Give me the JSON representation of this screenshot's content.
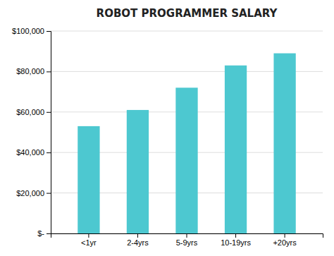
{
  "chart_data": {
    "type": "bar",
    "title": "ROBOT PROGRAMMER SALARY",
    "categories": [
      "<1yr",
      "2-4yrs",
      "5-9yrs",
      "10-19yrs",
      "+20yrs"
    ],
    "values": [
      53000,
      61000,
      72000,
      83000,
      89000
    ],
    "color": "#4DC8D0",
    "ylim": [
      0,
      100000
    ],
    "yticks": [
      {
        "value": 0,
        "label": "$-"
      },
      {
        "value": 20000,
        "label": "$20,000"
      },
      {
        "value": 40000,
        "label": "$40,000"
      },
      {
        "value": 60000,
        "label": "$60,000"
      },
      {
        "value": 80000,
        "label": "$80,000"
      },
      {
        "value": 100000,
        "label": "$100,000"
      }
    ],
    "grid": true
  }
}
